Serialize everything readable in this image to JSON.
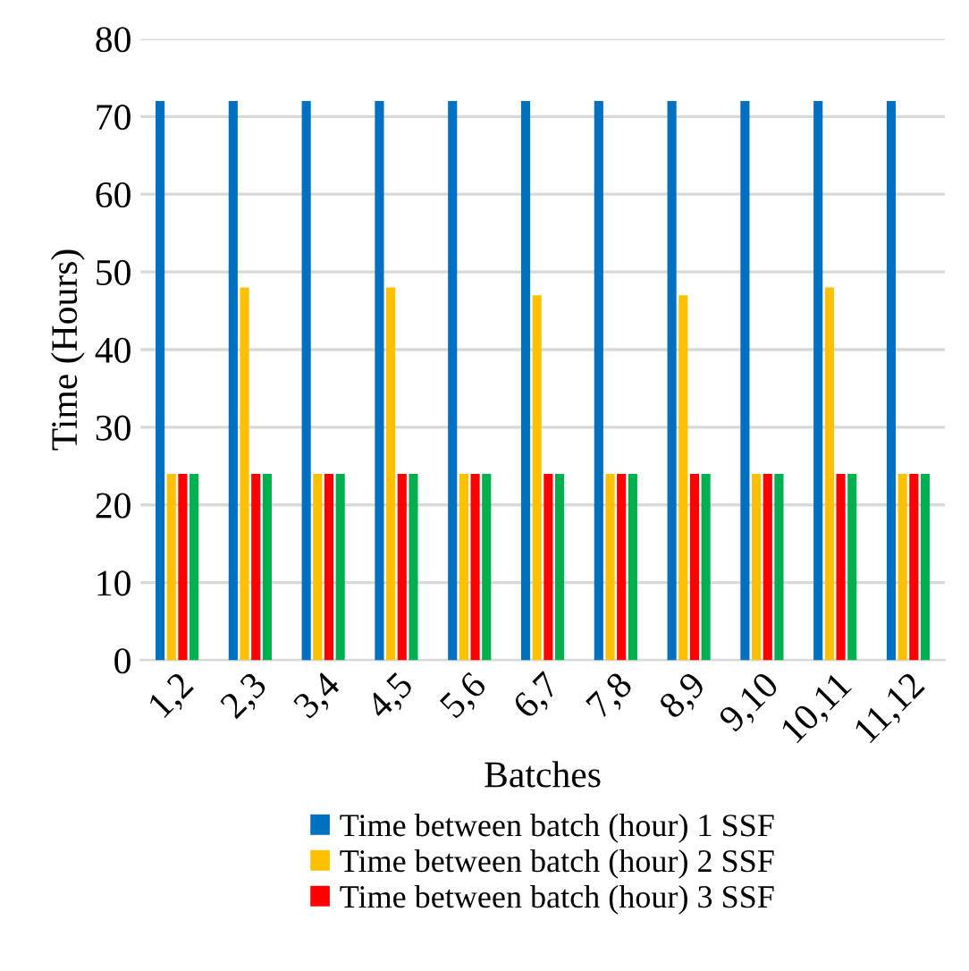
{
  "chart_data": {
    "type": "bar",
    "xlabel": "Batches",
    "ylabel": "Time (Hours)",
    "categories": [
      "1,2",
      "2,3",
      "3,4",
      "4,5",
      "5,6",
      "6,7",
      "7,8",
      "8,9",
      "9,10",
      "10,11",
      "11,12"
    ],
    "series": [
      {
        "name": "Time between batch (hour) 1 SSF",
        "color": "#0070c0",
        "values": [
          72,
          72,
          72,
          72,
          72,
          72,
          72,
          72,
          72,
          72,
          72
        ]
      },
      {
        "name": "Time between batch (hour) 2 SSF",
        "color": "#ffc000",
        "values": [
          24,
          48,
          24,
          48,
          24,
          47,
          24,
          47,
          24,
          48,
          24
        ]
      },
      {
        "name": "Time between batch (hour) 3 SSF",
        "color": "#ff0000",
        "values": [
          24,
          24,
          24,
          24,
          24,
          24,
          24,
          24,
          24,
          24,
          24
        ]
      },
      {
        "color": "#00b050",
        "values": [
          24,
          24,
          24,
          24,
          24,
          24,
          24,
          24,
          24,
          24,
          24
        ]
      }
    ],
    "ylim": [
      0,
      80
    ],
    "yticks": [
      0,
      10,
      20,
      30,
      40,
      50,
      60,
      70,
      80
    ],
    "grid": "y",
    "legend": "bottom"
  }
}
